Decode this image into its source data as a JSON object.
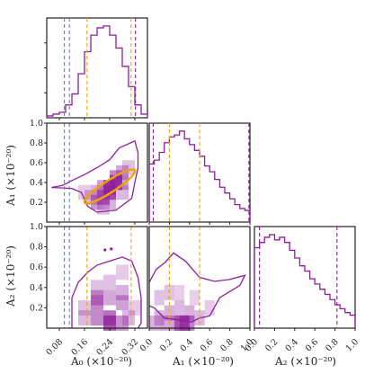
{
  "chart_data": {
    "type": "corner",
    "parameters": [
      {
        "key": "A0",
        "label": "A_0",
        "label_text": "A₀ (×10⁻²⁰)",
        "range": [
          0.04,
          0.36
        ],
        "ticks": [
          0.08,
          0.16,
          0.24,
          0.32
        ],
        "tick_labels": [
          "0.08",
          "0.16",
          "0.24",
          "0.32"
        ]
      },
      {
        "key": "A1",
        "label": "A_1",
        "label_text": "A₁ (×10⁻²⁰)",
        "range": [
          0.0,
          1.0
        ],
        "ticks": [
          0.0,
          0.2,
          0.4,
          0.6,
          0.8,
          1.0
        ],
        "tick_labels": [
          "0.0",
          "0.2",
          "0.4",
          "0.6",
          "0.8",
          "1.0"
        ]
      },
      {
        "key": "A2",
        "label": "A_2",
        "label_text": "A₂ (×10⁻²⁰)",
        "range": [
          0.0,
          1.0
        ],
        "ticks": [
          0.0,
          0.2,
          0.4,
          0.6,
          0.8,
          1.0
        ],
        "tick_labels": [
          "0.0",
          "0.2",
          "0.4",
          "0.6",
          "0.8",
          "1.0"
        ]
      }
    ],
    "y_tick_labels": {
      "A1": [
        "0.2",
        "0.4",
        "0.6",
        "0.8",
        "1.0"
      ],
      "A2": [
        "0.2",
        "0.4",
        "0.6",
        "0.8",
        "1.0"
      ]
    },
    "hist_color": "#8e1e9a",
    "blue_line_color": "#5b7fd6",
    "orange_line_color": "#f2a300",
    "ellipse_color": "#f2a300",
    "histograms": {
      "A0": {
        "edges": [
          0.04,
          0.06,
          0.08,
          0.1,
          0.12,
          0.14,
          0.16,
          0.18,
          0.2,
          0.22,
          0.24,
          0.26,
          0.28,
          0.3,
          0.32,
          0.34,
          0.36
        ],
        "counts": [
          0.02,
          0.04,
          0.06,
          0.14,
          0.26,
          0.48,
          0.72,
          0.9,
          0.98,
          1.0,
          0.9,
          0.76,
          0.56,
          0.34,
          0.14,
          0.04
        ]
      },
      "A1": {
        "edges": [
          0.0,
          0.05,
          0.1,
          0.15,
          0.2,
          0.25,
          0.3,
          0.35,
          0.4,
          0.45,
          0.5,
          0.55,
          0.6,
          0.65,
          0.7,
          0.75,
          0.8,
          0.85,
          0.9,
          0.95,
          1.0
        ],
        "counts": [
          0.6,
          0.64,
          0.72,
          0.82,
          0.88,
          0.9,
          0.94,
          0.86,
          0.8,
          0.74,
          0.68,
          0.58,
          0.52,
          0.44,
          0.36,
          0.3,
          0.24,
          0.18,
          0.14,
          0.12
        ]
      },
      "A2": {
        "edges": [
          0.0,
          0.05,
          0.1,
          0.15,
          0.2,
          0.25,
          0.3,
          0.35,
          0.4,
          0.45,
          0.5,
          0.55,
          0.6,
          0.65,
          0.7,
          0.75,
          0.8,
          0.85,
          0.9,
          0.95,
          1.0
        ],
        "counts": [
          0.62,
          0.66,
          0.7,
          0.72,
          0.68,
          0.7,
          0.66,
          0.6,
          0.54,
          0.48,
          0.44,
          0.38,
          0.34,
          0.3,
          0.26,
          0.22,
          0.18,
          0.15,
          0.12,
          0.1
        ]
      }
    },
    "vlines": {
      "A0": [
        {
          "value": 0.096,
          "color": "blue"
        },
        {
          "value": 0.112,
          "color": "blue"
        },
        {
          "value": 0.168,
          "color": "orange"
        },
        {
          "value": 0.308,
          "color": "orange"
        },
        {
          "value": 0.322,
          "color": "purple"
        }
      ],
      "A1": [
        {
          "value": 0.04,
          "color": "purple"
        },
        {
          "value": 0.2,
          "color": "orange"
        },
        {
          "value": 0.5,
          "color": "orange"
        },
        {
          "value": 0.99,
          "color": "purple"
        }
      ],
      "A2": [
        {
          "value": 0.05,
          "color": "purple"
        },
        {
          "value": 0.82,
          "color": "purple"
        }
      ]
    },
    "pairs": [
      {
        "x": "A0",
        "y": "A1",
        "vlines": [
          {
            "value": 0.096,
            "color": "blue"
          },
          {
            "value": 0.112,
            "color": "blue"
          }
        ],
        "contour": [
          [
            0.055,
            0.35
          ],
          [
            0.12,
            0.34
          ],
          [
            0.15,
            0.3
          ],
          [
            0.17,
            0.16
          ],
          [
            0.2,
            0.1
          ],
          [
            0.26,
            0.12
          ],
          [
            0.31,
            0.24
          ],
          [
            0.32,
            0.4
          ],
          [
            0.33,
            0.55
          ],
          [
            0.33,
            0.7
          ],
          [
            0.32,
            0.82
          ],
          [
            0.27,
            0.75
          ],
          [
            0.24,
            0.63
          ],
          [
            0.2,
            0.55
          ],
          [
            0.16,
            0.48
          ],
          [
            0.12,
            0.42
          ],
          [
            0.09,
            0.37
          ],
          [
            0.055,
            0.35
          ]
        ],
        "ellipse": {
          "cx": 0.24,
          "cy": 0.36,
          "rx": 0.095,
          "ry": 0.06,
          "angle_deg": -33
        },
        "density": [
          {
            "x": 0.2,
            "y": 0.2,
            "v": 0.45
          },
          {
            "x": 0.22,
            "y": 0.25,
            "v": 0.6
          },
          {
            "x": 0.24,
            "y": 0.3,
            "v": 0.75
          },
          {
            "x": 0.24,
            "y": 0.35,
            "v": 0.95
          },
          {
            "x": 0.26,
            "y": 0.4,
            "v": 0.85
          },
          {
            "x": 0.26,
            "y": 0.45,
            "v": 0.55
          },
          {
            "x": 0.28,
            "y": 0.5,
            "v": 0.35
          },
          {
            "x": 0.22,
            "y": 0.35,
            "v": 0.4
          },
          {
            "x": 0.2,
            "y": 0.3,
            "v": 0.3
          },
          {
            "x": 0.28,
            "y": 0.4,
            "v": 0.35
          },
          {
            "x": 0.18,
            "y": 0.25,
            "v": 0.25
          },
          {
            "x": 0.24,
            "y": 0.2,
            "v": 0.3
          },
          {
            "x": 0.3,
            "y": 0.55,
            "v": 0.2
          },
          {
            "x": 0.16,
            "y": 0.3,
            "v": 0.15
          },
          {
            "x": 0.28,
            "y": 0.3,
            "v": 0.25
          },
          {
            "x": 0.22,
            "y": 0.15,
            "v": 0.2
          }
        ]
      },
      {
        "x": "A0",
        "y": "A2",
        "vlines": [
          {
            "value": 0.096,
            "color": "blue"
          },
          {
            "value": 0.112,
            "color": "blue"
          },
          {
            "value": 0.168,
            "color": "orange"
          },
          {
            "value": 0.308,
            "color": "orange"
          }
        ],
        "contour": [
          [
            0.12,
            0.0
          ],
          [
            0.12,
            0.3
          ],
          [
            0.14,
            0.45
          ],
          [
            0.17,
            0.55
          ],
          [
            0.2,
            0.62
          ],
          [
            0.24,
            0.66
          ],
          [
            0.28,
            0.7
          ],
          [
            0.31,
            0.66
          ],
          [
            0.33,
            0.5
          ],
          [
            0.34,
            0.3
          ],
          [
            0.34,
            0.05
          ],
          [
            0.33,
            0.0
          ]
        ],
        "dots": [
          {
            "x": 0.225,
            "y": 0.77
          },
          {
            "x": 0.245,
            "y": 0.78
          }
        ],
        "density": [
          {
            "x": 0.2,
            "y": 0.1,
            "v": 0.55
          },
          {
            "x": 0.24,
            "y": 0.05,
            "v": 0.85
          },
          {
            "x": 0.24,
            "y": 0.1,
            "v": 0.7
          },
          {
            "x": 0.28,
            "y": 0.05,
            "v": 0.5
          },
          {
            "x": 0.2,
            "y": 0.25,
            "v": 0.55
          },
          {
            "x": 0.2,
            "y": 0.3,
            "v": 0.4
          },
          {
            "x": 0.24,
            "y": 0.3,
            "v": 0.35
          },
          {
            "x": 0.28,
            "y": 0.25,
            "v": 0.4
          },
          {
            "x": 0.28,
            "y": 0.35,
            "v": 0.3
          },
          {
            "x": 0.16,
            "y": 0.1,
            "v": 0.25
          },
          {
            "x": 0.16,
            "y": 0.2,
            "v": 0.2
          },
          {
            "x": 0.24,
            "y": 0.45,
            "v": 0.2
          },
          {
            "x": 0.2,
            "y": 0.4,
            "v": 0.2
          },
          {
            "x": 0.3,
            "y": 0.1,
            "v": 0.25
          },
          {
            "x": 0.28,
            "y": 0.55,
            "v": 0.15
          },
          {
            "x": 0.32,
            "y": 0.2,
            "v": 0.15
          }
        ]
      },
      {
        "x": "A1",
        "y": "A2",
        "vlines": [
          {
            "value": 0.2,
            "color": "orange"
          },
          {
            "value": 0.5,
            "color": "orange"
          }
        ],
        "contour": [
          [
            0.0,
            0.45
          ],
          [
            0.07,
            0.58
          ],
          [
            0.16,
            0.65
          ],
          [
            0.24,
            0.74
          ],
          [
            0.36,
            0.66
          ],
          [
            0.5,
            0.5
          ],
          [
            0.65,
            0.46
          ],
          [
            0.8,
            0.48
          ],
          [
            0.95,
            0.52
          ],
          [
            0.9,
            0.42
          ],
          [
            0.7,
            0.3
          ],
          [
            0.6,
            0.12
          ],
          [
            0.5,
            0.1
          ],
          [
            0.42,
            0.06
          ],
          [
            0.3,
            0.08
          ],
          [
            0.15,
            0.1
          ],
          [
            0.05,
            0.2
          ],
          [
            0.0,
            0.22
          ]
        ],
        "density": [
          {
            "x": 0.35,
            "y": 0.05,
            "v": 0.9
          },
          {
            "x": 0.3,
            "y": 0.05,
            "v": 0.7
          },
          {
            "x": 0.4,
            "y": 0.05,
            "v": 0.6
          },
          {
            "x": 0.25,
            "y": 0.05,
            "v": 0.4
          },
          {
            "x": 0.1,
            "y": 0.1,
            "v": 0.3
          },
          {
            "x": 0.2,
            "y": 0.15,
            "v": 0.3
          },
          {
            "x": 0.3,
            "y": 0.2,
            "v": 0.25
          },
          {
            "x": 0.1,
            "y": 0.3,
            "v": 0.2
          },
          {
            "x": 0.2,
            "y": 0.35,
            "v": 0.2
          },
          {
            "x": 0.4,
            "y": 0.15,
            "v": 0.3
          },
          {
            "x": 0.5,
            "y": 0.1,
            "v": 0.25
          },
          {
            "x": 0.6,
            "y": 0.2,
            "v": 0.15
          },
          {
            "x": 0.05,
            "y": 0.05,
            "v": 0.3
          },
          {
            "x": 0.15,
            "y": 0.05,
            "v": 0.35
          },
          {
            "x": 0.3,
            "y": 0.35,
            "v": 0.12
          },
          {
            "x": 0.45,
            "y": 0.3,
            "v": 0.12
          }
        ]
      }
    ]
  }
}
